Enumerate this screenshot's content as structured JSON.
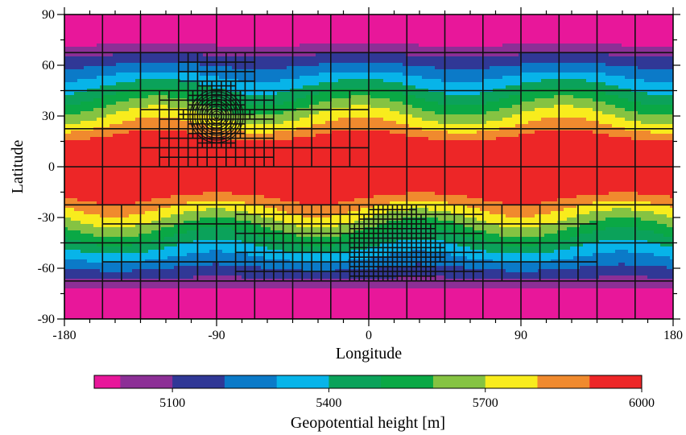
{
  "chart_data": {
    "type": "heatmap",
    "title": "",
    "xlabel": "Longitude",
    "ylabel": "Latitude",
    "xlim": [
      -180,
      180
    ],
    "ylim": [
      -90,
      90
    ],
    "xticks": [
      -180,
      -90,
      0,
      90,
      180
    ],
    "xtick_labels": [
      "-180",
      "-90",
      "0",
      "90",
      "180"
    ],
    "yticks": [
      90,
      60,
      30,
      0,
      -30,
      -60,
      -90
    ],
    "ytick_labels": [
      "90",
      "60",
      "30",
      "0",
      "-30",
      "-60",
      "-90"
    ],
    "colorbar": {
      "label": "Geopotential height [m]",
      "range": [
        4950,
        6000
      ],
      "ticks": [
        5100,
        5400,
        5700,
        6000
      ],
      "tick_labels": [
        "5100",
        "5400",
        "5700",
        "6000"
      ],
      "levels": [
        4950,
        5000,
        5100,
        5200,
        5300,
        5400,
        5500,
        5600,
        5700,
        5800,
        5900,
        6000
      ],
      "colors": [
        "#e8179a",
        "#8c2f96",
        "#303896",
        "#0b7ac8",
        "#07b4e9",
        "#0ba25a",
        "#0aa845",
        "#85c342",
        "#f8ec1d",
        "#f08a2e",
        "#ed2627"
      ]
    },
    "refinement_grid": {
      "levels": [
        0,
        1,
        2,
        3,
        4
      ],
      "base_spacing_deg": 22.5
    }
  }
}
